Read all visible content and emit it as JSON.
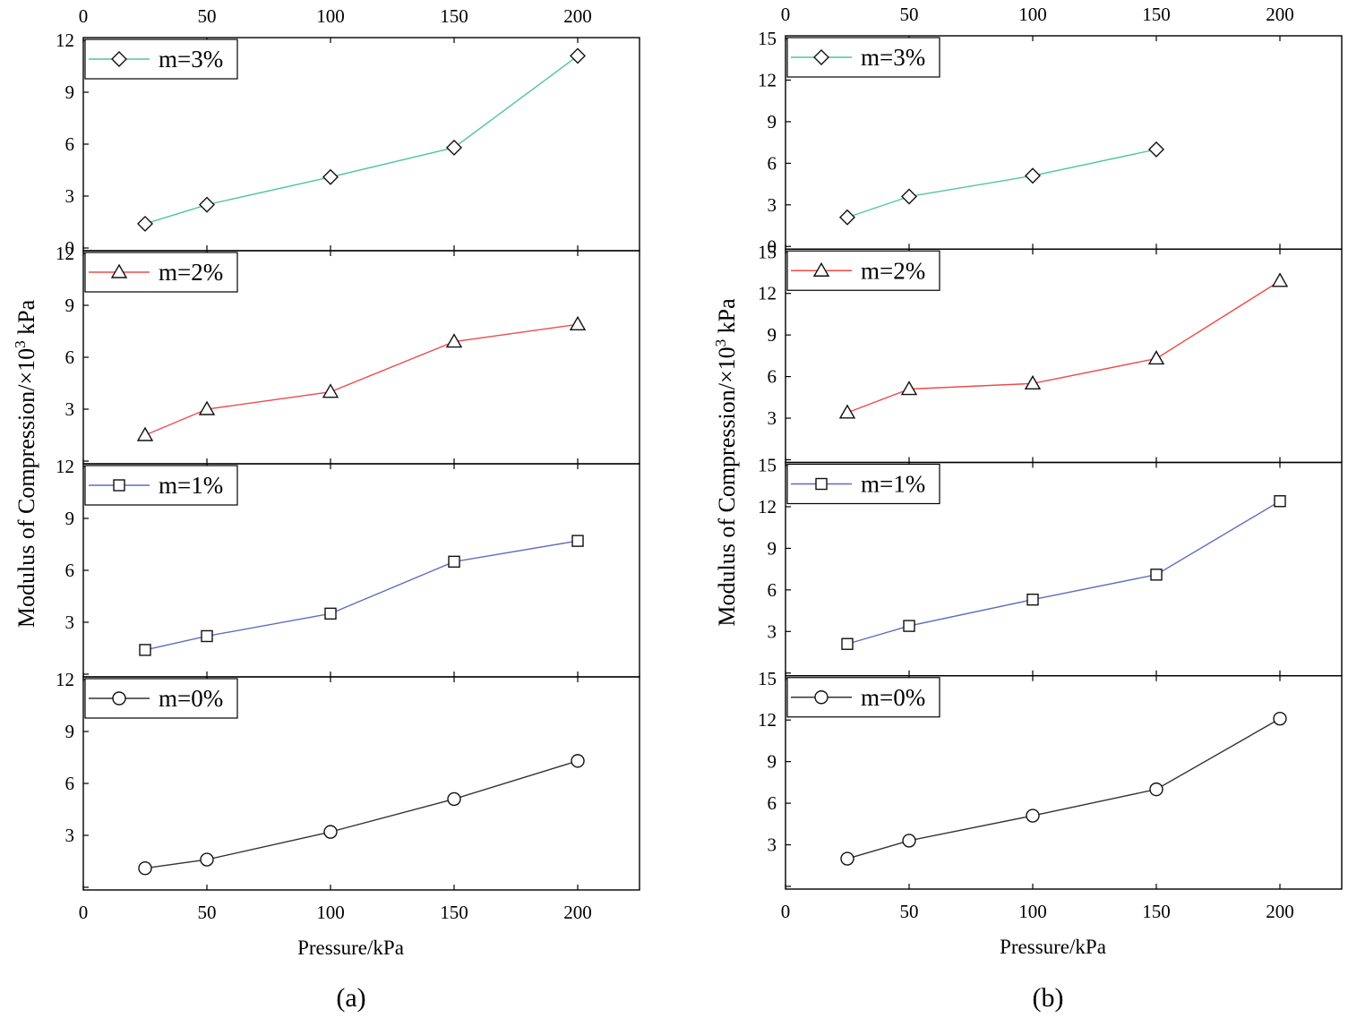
{
  "chart_data": [
    {
      "type": "line",
      "caption": "(a)",
      "xlabel": "Pressure/kPa",
      "ylabel_main": "Modulus of Compression/×10",
      "ylabel_sup": "3",
      "ylabel_unit": " kPa",
      "xlim": [
        0,
        225
      ],
      "xticks": [
        0,
        50,
        100,
        150,
        200
      ],
      "ylim": [
        0,
        12
      ],
      "yticks": [
        0,
        3,
        6,
        9,
        12
      ],
      "panels": [
        {
          "name": "m=3%",
          "color": "#4fc4a4",
          "marker": "diamond",
          "x": [
            25,
            50,
            100,
            150,
            200
          ],
          "y": [
            1.4,
            2.5,
            4.1,
            5.8,
            11.1
          ]
        },
        {
          "name": "m=2%",
          "color": "#ef4a4a",
          "marker": "triangle",
          "x": [
            25,
            50,
            100,
            150,
            200
          ],
          "y": [
            1.5,
            3.0,
            4.0,
            6.9,
            7.9
          ]
        },
        {
          "name": "m=1%",
          "color": "#5f6ebc",
          "marker": "square",
          "x": [
            25,
            50,
            100,
            150,
            200
          ],
          "y": [
            1.4,
            2.2,
            3.5,
            6.5,
            7.7
          ]
        },
        {
          "name": "m=0%",
          "color": "#333333",
          "marker": "circle",
          "x": [
            25,
            50,
            100,
            150,
            200
          ],
          "y": [
            1.1,
            1.6,
            3.2,
            5.1,
            7.3
          ]
        }
      ]
    },
    {
      "type": "line",
      "caption": "(b)",
      "xlabel": "Pressure/kPa",
      "ylabel_main": "Modulus of Compression/×10",
      "ylabel_sup": "3",
      "ylabel_unit": " kPa",
      "xlim": [
        0,
        225
      ],
      "xticks": [
        0,
        50,
        100,
        150,
        200
      ],
      "ylim": [
        0,
        15
      ],
      "yticks": [
        0,
        3,
        6,
        9,
        12,
        15
      ],
      "panels": [
        {
          "name": "m=3%",
          "color": "#4fc4a4",
          "marker": "diamond",
          "x": [
            25,
            50,
            100,
            150
          ],
          "y": [
            2.1,
            3.6,
            5.1,
            7.0
          ]
        },
        {
          "name": "m=2%",
          "color": "#ef4a4a",
          "marker": "triangle",
          "x": [
            25,
            50,
            100,
            150,
            200
          ],
          "y": [
            3.4,
            5.1,
            5.5,
            7.3,
            12.9
          ]
        },
        {
          "name": "m=1%",
          "color": "#5f6ebc",
          "marker": "square",
          "x": [
            25,
            50,
            100,
            150,
            200
          ],
          "y": [
            2.1,
            3.4,
            5.3,
            7.1,
            12.4
          ]
        },
        {
          "name": "m=0%",
          "color": "#333333",
          "marker": "circle",
          "x": [
            25,
            50,
            100,
            150,
            200
          ],
          "y": [
            2.0,
            3.3,
            5.1,
            7.0,
            12.1
          ]
        }
      ]
    }
  ]
}
